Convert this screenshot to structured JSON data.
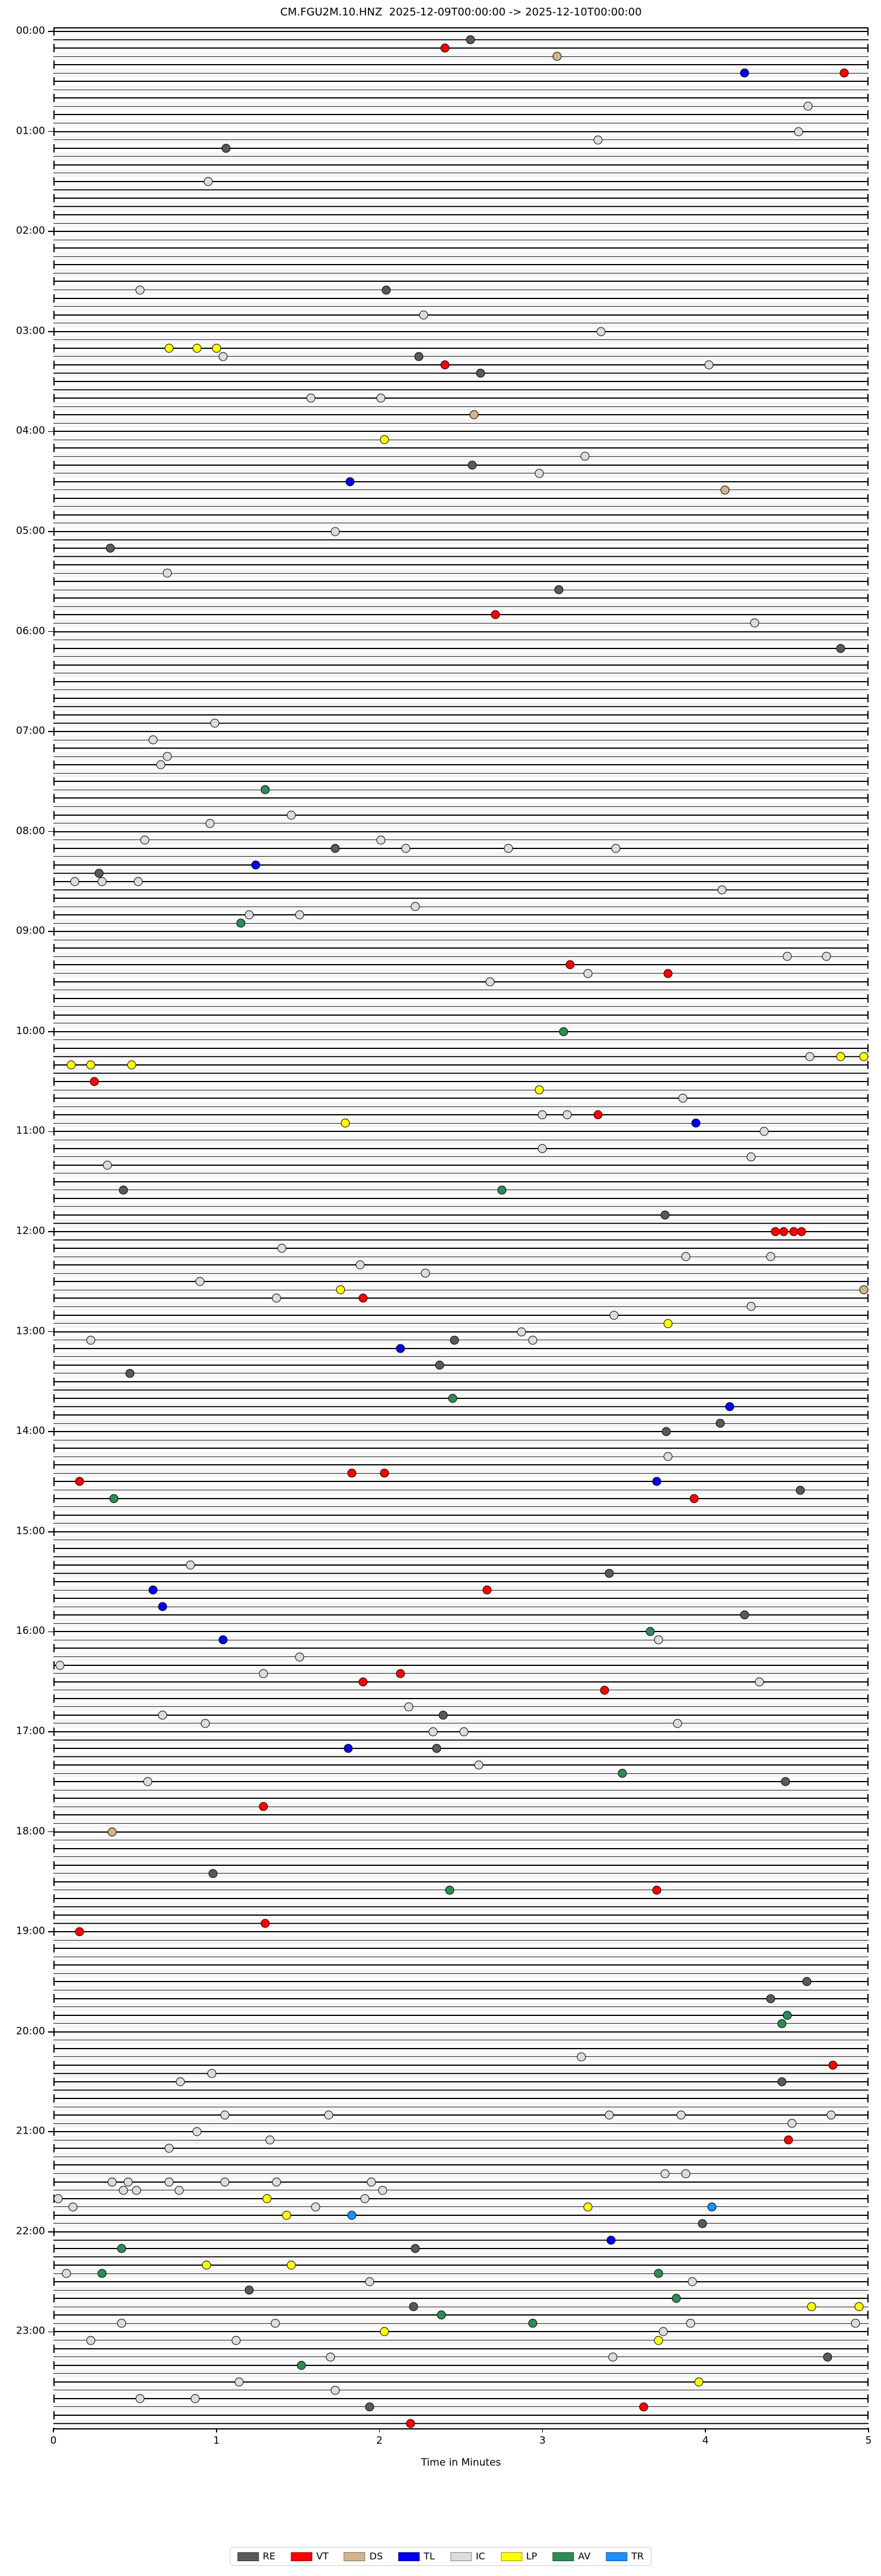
{
  "title": "CM.FGU2M.10.HNZ  2025-12-09T00:00:00 -> 2025-12-10T00:00:00",
  "chart_data": {
    "type": "scatter",
    "xlabel": "Time in Minutes",
    "x_ticks": [
      "0",
      "1",
      "2",
      "3",
      "4",
      "5"
    ],
    "x_range": [
      0,
      5
    ],
    "rows": 288,
    "minutes_per_row": 5,
    "y_hour_labels": [
      "00:00",
      "01:00",
      "02:00",
      "03:00",
      "04:00",
      "05:00",
      "06:00",
      "07:00",
      "08:00",
      "09:00",
      "10:00",
      "11:00",
      "12:00",
      "13:00",
      "14:00",
      "15:00",
      "16:00",
      "17:00",
      "18:00",
      "19:00",
      "20:00",
      "21:00",
      "22:00",
      "23:00"
    ],
    "legend": [
      {
        "code": "RE",
        "color": "#595959"
      },
      {
        "code": "VT",
        "color": "#ff0000"
      },
      {
        "code": "DS",
        "color": "#d2b48c"
      },
      {
        "code": "TL",
        "color": "#0000ee"
      },
      {
        "code": "IC",
        "color": "#dcdcdc"
      },
      {
        "code": "LP",
        "color": "#ffff00"
      },
      {
        "code": "AV",
        "color": "#2e8b57"
      },
      {
        "code": "TR",
        "color": "#1e90ff"
      }
    ],
    "events": [
      [
        "00:05",
        2.56,
        "RE"
      ],
      [
        "00:10",
        2.4,
        "VT"
      ],
      [
        "00:15",
        3.09,
        "DS"
      ],
      [
        "00:25",
        4.24,
        "TL"
      ],
      [
        "00:25",
        4.85,
        "VT"
      ],
      [
        "00:45",
        4.63,
        "IC"
      ],
      [
        "01:00",
        4.57,
        "IC"
      ],
      [
        "01:05",
        3.34,
        "IC"
      ],
      [
        "01:10",
        1.06,
        "RE"
      ],
      [
        "01:30",
        0.95,
        "IC"
      ],
      [
        "02:35",
        0.53,
        "IC"
      ],
      [
        "02:35",
        2.04,
        "RE"
      ],
      [
        "02:50",
        2.27,
        "IC"
      ],
      [
        "03:00",
        3.36,
        "IC"
      ],
      [
        "03:10",
        0.71,
        "LP"
      ],
      [
        "03:10",
        0.88,
        "LP"
      ],
      [
        "03:10",
        1.0,
        "LP"
      ],
      [
        "03:15",
        1.04,
        "IC"
      ],
      [
        "03:15",
        2.24,
        "RE"
      ],
      [
        "03:20",
        2.4,
        "VT"
      ],
      [
        "03:20",
        4.02,
        "IC"
      ],
      [
        "03:25",
        2.62,
        "RE"
      ],
      [
        "03:40",
        1.58,
        "IC"
      ],
      [
        "03:40",
        2.01,
        "IC"
      ],
      [
        "03:50",
        2.58,
        "DS"
      ],
      [
        "04:05",
        2.03,
        "LP"
      ],
      [
        "04:15",
        3.26,
        "IC"
      ],
      [
        "04:20",
        2.57,
        "RE"
      ],
      [
        "04:25",
        2.98,
        "IC"
      ],
      [
        "04:30",
        1.82,
        "TL"
      ],
      [
        "04:35",
        4.12,
        "DS"
      ],
      [
        "05:00",
        1.73,
        "IC"
      ],
      [
        "05:10",
        0.35,
        "RE"
      ],
      [
        "05:25",
        0.7,
        "IC"
      ],
      [
        "05:35",
        3.1,
        "RE"
      ],
      [
        "05:50",
        2.71,
        "VT"
      ],
      [
        "05:55",
        4.3,
        "IC"
      ],
      [
        "06:10",
        4.83,
        "RE"
      ],
      [
        "06:55",
        0.99,
        "IC"
      ],
      [
        "07:05",
        0.61,
        "IC"
      ],
      [
        "07:15",
        0.7,
        "IC"
      ],
      [
        "07:20",
        0.66,
        "IC"
      ],
      [
        "07:35",
        1.3,
        "AV"
      ],
      [
        "07:50",
        1.46,
        "IC"
      ],
      [
        "07:55",
        0.96,
        "IC"
      ],
      [
        "08:05",
        0.56,
        "IC"
      ],
      [
        "08:05",
        2.01,
        "IC"
      ],
      [
        "08:10",
        1.73,
        "RE"
      ],
      [
        "08:10",
        2.16,
        "IC"
      ],
      [
        "08:10",
        2.79,
        "IC"
      ],
      [
        "08:10",
        3.45,
        "IC"
      ],
      [
        "08:20",
        1.24,
        "TL"
      ],
      [
        "08:25",
        0.28,
        "RE"
      ],
      [
        "08:30",
        0.13,
        "IC"
      ],
      [
        "08:30",
        0.3,
        "IC"
      ],
      [
        "08:30",
        0.52,
        "IC"
      ],
      [
        "08:35",
        4.1,
        "IC"
      ],
      [
        "08:45",
        2.22,
        "IC"
      ],
      [
        "08:50",
        1.2,
        "IC"
      ],
      [
        "08:50",
        1.51,
        "IC"
      ],
      [
        "08:55",
        1.15,
        "AV"
      ],
      [
        "09:15",
        4.5,
        "IC"
      ],
      [
        "09:15",
        4.74,
        "IC"
      ],
      [
        "09:20",
        3.17,
        "VT"
      ],
      [
        "09:25",
        3.28,
        "IC"
      ],
      [
        "09:25",
        3.77,
        "VT"
      ],
      [
        "09:30",
        2.68,
        "IC"
      ],
      [
        "10:00",
        3.13,
        "AV"
      ],
      [
        "10:15",
        4.64,
        "IC"
      ],
      [
        "10:15",
        4.83,
        "LP"
      ],
      [
        "10:15",
        4.97,
        "LP"
      ],
      [
        "10:20",
        0.11,
        "LP"
      ],
      [
        "10:20",
        0.23,
        "LP"
      ],
      [
        "10:20",
        0.48,
        "LP"
      ],
      [
        "10:30",
        0.25,
        "VT"
      ],
      [
        "10:35",
        2.98,
        "LP"
      ],
      [
        "10:40",
        3.86,
        "IC"
      ],
      [
        "10:50",
        3.0,
        "IC"
      ],
      [
        "10:50",
        3.15,
        "IC"
      ],
      [
        "10:50",
        3.34,
        "VT"
      ],
      [
        "10:55",
        1.79,
        "LP"
      ],
      [
        "10:55",
        3.94,
        "TL"
      ],
      [
        "11:00",
        4.36,
        "IC"
      ],
      [
        "11:10",
        3.0,
        "IC"
      ],
      [
        "11:15",
        4.28,
        "IC"
      ],
      [
        "11:20",
        0.33,
        "IC"
      ],
      [
        "11:35",
        0.43,
        "RE"
      ],
      [
        "11:35",
        2.75,
        "AV"
      ],
      [
        "11:50",
        3.75,
        "RE"
      ],
      [
        "12:00",
        4.43,
        "VT"
      ],
      [
        "12:00",
        4.48,
        "VT"
      ],
      [
        "12:00",
        4.54,
        "VT"
      ],
      [
        "12:00",
        4.59,
        "VT"
      ],
      [
        "12:10",
        1.4,
        "IC"
      ],
      [
        "12:15",
        3.88,
        "IC"
      ],
      [
        "12:15",
        4.4,
        "IC"
      ],
      [
        "12:20",
        1.88,
        "IC"
      ],
      [
        "12:25",
        2.28,
        "IC"
      ],
      [
        "12:30",
        0.9,
        "IC"
      ],
      [
        "12:35",
        1.76,
        "LP"
      ],
      [
        "12:35",
        4.97,
        "DS"
      ],
      [
        "12:40",
        1.37,
        "IC"
      ],
      [
        "12:40",
        1.9,
        "VT"
      ],
      [
        "12:45",
        4.28,
        "IC"
      ],
      [
        "12:50",
        3.44,
        "IC"
      ],
      [
        "12:55",
        3.77,
        "LP"
      ],
      [
        "13:00",
        2.87,
        "IC"
      ],
      [
        "13:05",
        0.23,
        "IC"
      ],
      [
        "13:05",
        2.46,
        "RE"
      ],
      [
        "13:05",
        2.94,
        "IC"
      ],
      [
        "13:10",
        2.13,
        "TL"
      ],
      [
        "13:20",
        2.37,
        "RE"
      ],
      [
        "13:25",
        0.47,
        "RE"
      ],
      [
        "13:40",
        2.45,
        "AV"
      ],
      [
        "13:45",
        4.15,
        "TL"
      ],
      [
        "13:55",
        4.09,
        "RE"
      ],
      [
        "14:00",
        3.76,
        "RE"
      ],
      [
        "14:15",
        3.77,
        "IC"
      ],
      [
        "14:25",
        1.83,
        "VT"
      ],
      [
        "14:25",
        2.03,
        "VT"
      ],
      [
        "14:30",
        0.16,
        "VT"
      ],
      [
        "14:30",
        3.7,
        "TL"
      ],
      [
        "14:35",
        4.58,
        "RE"
      ],
      [
        "14:40",
        0.37,
        "AV"
      ],
      [
        "14:40",
        3.93,
        "VT"
      ],
      [
        "15:20",
        0.84,
        "IC"
      ],
      [
        "15:25",
        3.41,
        "RE"
      ],
      [
        "15:35",
        0.61,
        "TL"
      ],
      [
        "15:35",
        2.66,
        "VT"
      ],
      [
        "15:45",
        0.67,
        "TL"
      ],
      [
        "15:50",
        4.24,
        "RE"
      ],
      [
        "16:00",
        3.66,
        "AV"
      ],
      [
        "16:05",
        1.04,
        "TL"
      ],
      [
        "16:05",
        3.71,
        "IC"
      ],
      [
        "16:15",
        1.51,
        "IC"
      ],
      [
        "16:20",
        0.04,
        "IC"
      ],
      [
        "16:25",
        1.29,
        "IC"
      ],
      [
        "16:25",
        2.13,
        "VT"
      ],
      [
        "16:30",
        1.9,
        "VT"
      ],
      [
        "16:30",
        4.33,
        "IC"
      ],
      [
        "16:35",
        3.38,
        "VT"
      ],
      [
        "16:45",
        2.18,
        "IC"
      ],
      [
        "16:50",
        0.67,
        "IC"
      ],
      [
        "16:50",
        2.39,
        "RE"
      ],
      [
        "16:55",
        0.93,
        "IC"
      ],
      [
        "16:55",
        3.83,
        "IC"
      ],
      [
        "17:00",
        2.33,
        "IC"
      ],
      [
        "17:00",
        2.52,
        "IC"
      ],
      [
        "17:10",
        1.81,
        "TL"
      ],
      [
        "17:10",
        2.35,
        "RE"
      ],
      [
        "17:20",
        2.61,
        "IC"
      ],
      [
        "17:25",
        3.49,
        "AV"
      ],
      [
        "17:30",
        0.58,
        "IC"
      ],
      [
        "17:30",
        4.49,
        "RE"
      ],
      [
        "17:45",
        1.29,
        "VT"
      ],
      [
        "18:00",
        0.36,
        "DS"
      ],
      [
        "18:25",
        0.98,
        "RE"
      ],
      [
        "18:35",
        2.43,
        "AV"
      ],
      [
        "18:35",
        3.7,
        "VT"
      ],
      [
        "18:55",
        1.3,
        "VT"
      ],
      [
        "19:00",
        0.16,
        "VT"
      ],
      [
        "19:30",
        4.62,
        "RE"
      ],
      [
        "19:40",
        4.4,
        "RE"
      ],
      [
        "19:50",
        4.5,
        "AV"
      ],
      [
        "19:55",
        4.47,
        "AV"
      ],
      [
        "20:15",
        3.24,
        "IC"
      ],
      [
        "20:20",
        4.78,
        "VT"
      ],
      [
        "20:25",
        0.97,
        "IC"
      ],
      [
        "20:30",
        0.78,
        "IC"
      ],
      [
        "20:30",
        4.47,
        "RE"
      ],
      [
        "20:50",
        1.05,
        "IC"
      ],
      [
        "20:50",
        1.69,
        "IC"
      ],
      [
        "20:50",
        3.41,
        "IC"
      ],
      [
        "20:50",
        3.85,
        "IC"
      ],
      [
        "20:50",
        4.77,
        "IC"
      ],
      [
        "20:55",
        4.53,
        "IC"
      ],
      [
        "21:00",
        0.88,
        "IC"
      ],
      [
        "21:05",
        1.33,
        "IC"
      ],
      [
        "21:05",
        4.51,
        "VT"
      ],
      [
        "21:10",
        0.71,
        "IC"
      ],
      [
        "21:25",
        3.75,
        "IC"
      ],
      [
        "21:25",
        3.88,
        "IC"
      ],
      [
        "21:30",
        0.36,
        "IC"
      ],
      [
        "21:30",
        0.46,
        "IC"
      ],
      [
        "21:30",
        0.71,
        "IC"
      ],
      [
        "21:30",
        1.05,
        "IC"
      ],
      [
        "21:30",
        1.37,
        "IC"
      ],
      [
        "21:30",
        1.95,
        "IC"
      ],
      [
        "21:35",
        0.43,
        "IC"
      ],
      [
        "21:35",
        0.51,
        "IC"
      ],
      [
        "21:35",
        0.77,
        "IC"
      ],
      [
        "21:35",
        2.02,
        "IC"
      ],
      [
        "21:40",
        0.03,
        "IC"
      ],
      [
        "21:40",
        1.31,
        "LP"
      ],
      [
        "21:40",
        1.91,
        "IC"
      ],
      [
        "21:45",
        0.12,
        "IC"
      ],
      [
        "21:45",
        1.61,
        "IC"
      ],
      [
        "21:45",
        3.28,
        "LP"
      ],
      [
        "21:45",
        4.04,
        "TR"
      ],
      [
        "21:50",
        1.43,
        "LP"
      ],
      [
        "21:50",
        1.83,
        "TR"
      ],
      [
        "21:55",
        3.98,
        "RE"
      ],
      [
        "22:05",
        3.42,
        "TL"
      ],
      [
        "22:10",
        0.42,
        "AV"
      ],
      [
        "22:10",
        2.22,
        "RE"
      ],
      [
        "22:20",
        0.94,
        "LP"
      ],
      [
        "22:20",
        1.46,
        "LP"
      ],
      [
        "22:25",
        0.08,
        "IC"
      ],
      [
        "22:25",
        0.3,
        "AV"
      ],
      [
        "22:25",
        3.71,
        "AV"
      ],
      [
        "22:30",
        1.94,
        "IC"
      ],
      [
        "22:30",
        3.92,
        "IC"
      ],
      [
        "22:35",
        1.2,
        "RE"
      ],
      [
        "22:40",
        3.82,
        "AV"
      ],
      [
        "22:45",
        2.21,
        "RE"
      ],
      [
        "22:45",
        4.65,
        "LP"
      ],
      [
        "22:45",
        4.94,
        "LP"
      ],
      [
        "22:50",
        2.38,
        "AV"
      ],
      [
        "22:55",
        0.42,
        "IC"
      ],
      [
        "22:55",
        1.36,
        "IC"
      ],
      [
        "22:55",
        2.94,
        "AV"
      ],
      [
        "22:55",
        3.91,
        "IC"
      ],
      [
        "22:55",
        4.92,
        "IC"
      ],
      [
        "23:00",
        2.03,
        "LP"
      ],
      [
        "23:00",
        3.74,
        "IC"
      ],
      [
        "23:05",
        0.23,
        "IC"
      ],
      [
        "23:05",
        1.12,
        "IC"
      ],
      [
        "23:05",
        3.71,
        "LP"
      ],
      [
        "23:15",
        1.7,
        "IC"
      ],
      [
        "23:15",
        3.43,
        "IC"
      ],
      [
        "23:15",
        4.75,
        "RE"
      ],
      [
        "23:20",
        1.52,
        "AV"
      ],
      [
        "23:30",
        1.14,
        "IC"
      ],
      [
        "23:30",
        3.96,
        "LP"
      ],
      [
        "23:35",
        1.73,
        "IC"
      ],
      [
        "23:40",
        0.53,
        "IC"
      ],
      [
        "23:40",
        0.87,
        "IC"
      ],
      [
        "23:45",
        1.94,
        "RE"
      ],
      [
        "23:45",
        3.62,
        "VT"
      ],
      [
        "23:55",
        2.19,
        "VT"
      ]
    ]
  }
}
